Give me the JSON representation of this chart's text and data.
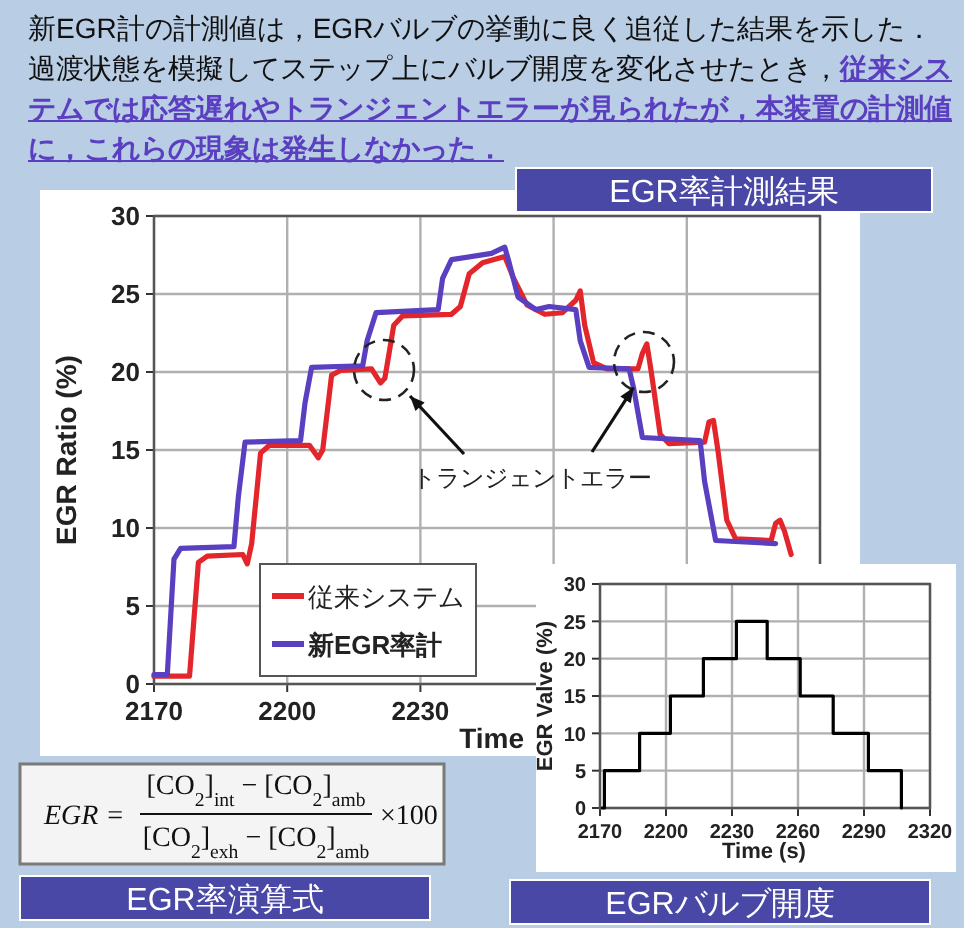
{
  "chart_data": [
    {
      "type": "other",
      "annotations": [
        "新EGR計の計測値は，EGRバルブの挙動に良く追従した結果を示した．過渡状態を模擬してステップ上にバルブ開度を変化させたとき，",
        "従来システムでは応答遅れやトランジェントエラーが見られたが，本装置の計測値に，これらの現象は発生しなかった．"
      ]
    },
    {
      "type": "line",
      "title": "EGR率計測結果",
      "xlabel": "Time",
      "ylabel": "EGR Ratio (%)",
      "xlim": [
        2170,
        2320
      ],
      "xticks": [
        2170,
        2200,
        2230,
        {
          "value": 2260,
          "label": null
        },
        {
          "value": 2290,
          "label": null
        },
        {
          "value": 2320,
          "label": null
        }
      ],
      "ylim": [
        0,
        30
      ],
      "yticks": [
        0,
        5,
        10,
        15,
        20,
        25,
        30
      ],
      "grid": true,
      "legend": "bottom left",
      "annotations": [
        {
          "text": "トランジェントエラー",
          "x": 2278,
          "y": 19
        }
      ],
      "series": [
        {
          "name": "従来システム",
          "color": "#e3262b",
          "x": [
            2170,
            2178,
            2180,
            2182,
            2190,
            2191,
            2192,
            2194,
            2196,
            2205,
            2207,
            2208,
            2210,
            2212,
            2219,
            2221,
            2222,
            2224,
            2226,
            2237,
            2239,
            2241,
            2244,
            2249,
            2251,
            2254,
            2258,
            2262,
            2265,
            2266,
            2267,
            2269,
            2272,
            2279,
            2280,
            2281,
            2282,
            2284,
            2286,
            2294,
            2295,
            2296,
            2297,
            2299,
            2301,
            2309,
            2310,
            2311,
            2312,
            2313.5
          ],
          "values": [
            0.5,
            0.5,
            7.8,
            8.2,
            8.3,
            7.7,
            9,
            14.8,
            15.3,
            15.3,
            14.5,
            15,
            19.8,
            20.1,
            20.2,
            19.3,
            19.6,
            23,
            23.6,
            23.7,
            24.2,
            26.3,
            27,
            27.4,
            26,
            24.3,
            23.7,
            23.8,
            24.6,
            25.2,
            23,
            20.6,
            20.2,
            20.2,
            21.2,
            21.8,
            20,
            16,
            15.4,
            15.5,
            16.8,
            16.9,
            15,
            10.5,
            9.3,
            9.2,
            10.3,
            10.5,
            9.8,
            8.3
          ]
        },
        {
          "name": "新EGR率計",
          "color": "#5a3fc0",
          "x": [
            2170,
            2173,
            2174.5,
            2176,
            2188,
            2189,
            2190.5,
            2203,
            2204,
            2205.5,
            2217,
            2218,
            2220,
            2234,
            2235,
            2237,
            2246,
            2249,
            2250,
            2252,
            2256,
            2259,
            2265,
            2266,
            2268,
            2277,
            2278,
            2280,
            2293,
            2294,
            2296.5,
            2310
          ],
          "values": [
            0.6,
            0.6,
            8,
            8.7,
            8.8,
            12,
            15.5,
            15.6,
            18,
            20.3,
            20.4,
            22,
            23.8,
            24,
            26,
            27.2,
            27.6,
            28,
            27,
            24.8,
            24,
            24.2,
            24,
            22,
            20.3,
            20.2,
            19,
            15.8,
            15.6,
            13,
            9.2,
            9
          ]
        }
      ]
    },
    {
      "type": "step",
      "title": "EGRバルブ開度",
      "xlabel": "Time (s)",
      "ylabel": "EGR Valve (%)",
      "xlim": [
        2170,
        2320
      ],
      "xticks": [
        2170,
        2200,
        2230,
        2260,
        2290,
        2320
      ],
      "ylim": [
        0,
        30
      ],
      "yticks": [
        0,
        5,
        10,
        15,
        20,
        25,
        30
      ],
      "grid": true,
      "series": [
        {
          "color": "#000000",
          "x": [
            2171,
            2172,
            2188,
            2202,
            2217,
            2232,
            2246,
            2261,
            2276,
            2292,
            2307
          ],
          "values": [
            0,
            5,
            10,
            15,
            20,
            25,
            20,
            15,
            10,
            5,
            0
          ]
        }
      ]
    },
    {
      "type": "other",
      "title": "EGR率演算式",
      "annotations": [
        "EGR =",
        "[CO$_{2}$]$_{int}$ − [CO$_{2}$]$_{amb}$",
        "[CO$_{2}$]$_{exh}$ − [CO$_{2}$]$_{amb}$",
        "×100"
      ]
    }
  ]
}
